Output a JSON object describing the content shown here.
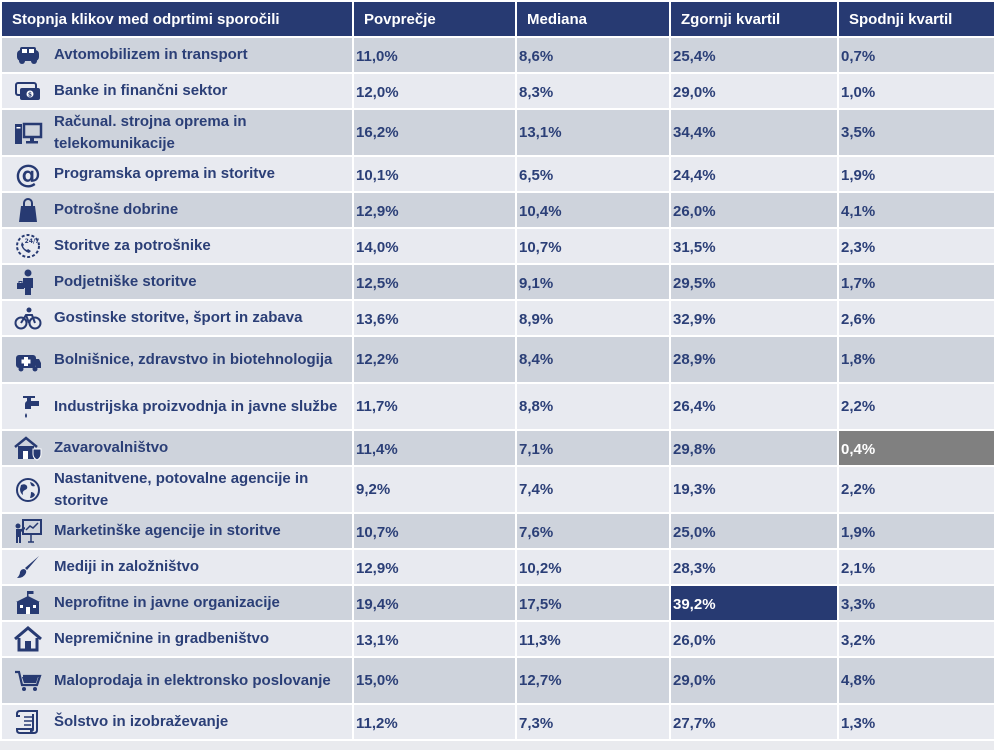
{
  "headers": [
    "Stopnja klikov med odprtimi sporočili",
    "Povprečje",
    "Mediana",
    "Zgornji kvartil",
    "Spodnji kvartil"
  ],
  "rows": [
    {
      "name": "Avtomobilizem in transport",
      "icon": "car-icon",
      "avg": "11,0%",
      "median": "8,6%",
      "upper": "25,4%",
      "lower": "0,7%"
    },
    {
      "name": "Banke in finančni sektor",
      "icon": "money-icon",
      "avg": "12,0%",
      "median": "8,3%",
      "upper": "29,0%",
      "lower": "1,0%"
    },
    {
      "name": "Računal. strojna oprema in telekomunikacije",
      "icon": "computer-icon",
      "avg": "16,2%",
      "median": "13,1%",
      "upper": "34,4%",
      "lower": "3,5%"
    },
    {
      "name": "Programska oprema in storitve",
      "icon": "at-sign-icon",
      "avg": "10,1%",
      "median": "6,5%",
      "upper": "24,4%",
      "lower": "1,9%"
    },
    {
      "name": "Potrošne dobrine",
      "icon": "shopping-bag-icon",
      "avg": "12,9%",
      "median": "10,4%",
      "upper": "26,0%",
      "lower": "4,1%"
    },
    {
      "name": "Storitve za potrošnike",
      "icon": "phone-24-7-icon",
      "avg": "14,0%",
      "median": "10,7%",
      "upper": "31,5%",
      "lower": "2,3%"
    },
    {
      "name": "Podjetniške storitve",
      "icon": "businessman-icon",
      "avg": "12,5%",
      "median": "9,1%",
      "upper": "29,5%",
      "lower": "1,7%"
    },
    {
      "name": "Gostinske storitve, šport in zabava",
      "icon": "bicycle-icon",
      "avg": "13,6%",
      "median": "8,9%",
      "upper": "32,9%",
      "lower": "2,6%"
    },
    {
      "name": "Bolnišnice, zdravstvo in biotehnologija",
      "icon": "ambulance-icon",
      "avg": "12,2%",
      "median": "8,4%",
      "upper": "28,9%",
      "lower": "1,8%"
    },
    {
      "name": "Industrijska proizvodnja in javne službe",
      "icon": "faucet-icon",
      "avg": "11,7%",
      "median": "8,8%",
      "upper": "26,4%",
      "lower": "2,2%"
    },
    {
      "name": "Zavarovalništvo",
      "icon": "house-shield-icon",
      "avg": "11,4%",
      "median": "7,1%",
      "upper": "29,8%",
      "lower": "0,4%"
    },
    {
      "name": "Nastanitvene, potovalne agencije in storitve",
      "icon": "globe-icon",
      "avg": "9,2%",
      "median": "7,4%",
      "upper": "19,3%",
      "lower": "2,2%"
    },
    {
      "name": "Marketinške agencije in storitve",
      "icon": "presentation-icon",
      "avg": "10,7%",
      "median": "7,6%",
      "upper": "25,0%",
      "lower": "1,9%"
    },
    {
      "name": "Mediji in založništvo",
      "icon": "brush-icon",
      "avg": "12,9%",
      "median": "10,2%",
      "upper": "28,3%",
      "lower": "2,1%"
    },
    {
      "name": "Neprofitne in javne organizacije",
      "icon": "school-building-icon",
      "avg": "19,4%",
      "median": "17,5%",
      "upper": "39,2%",
      "lower": "3,3%"
    },
    {
      "name": "Nepremičnine in gradbeništvo",
      "icon": "home-icon",
      "avg": "13,1%",
      "median": "11,3%",
      "upper": "26,0%",
      "lower": "3,2%"
    },
    {
      "name": "Maloprodaja in elektronsko poslovanje",
      "icon": "shopping-cart-icon",
      "avg": "15,0%",
      "median": "12,7%",
      "upper": "29,0%",
      "lower": "4,8%"
    },
    {
      "name": "Šolstvo in izobraževanje",
      "icon": "scroll-icon",
      "avg": "11,2%",
      "median": "7,3%",
      "upper": "27,7%",
      "lower": "1,3%"
    }
  ],
  "colors": {
    "header": "#273a72",
    "text": "#2b3f77",
    "row_even": "#ced3dc",
    "row_odd": "#e8eaf0",
    "highlight_min": "#808080",
    "highlight_max": "#273a72"
  }
}
